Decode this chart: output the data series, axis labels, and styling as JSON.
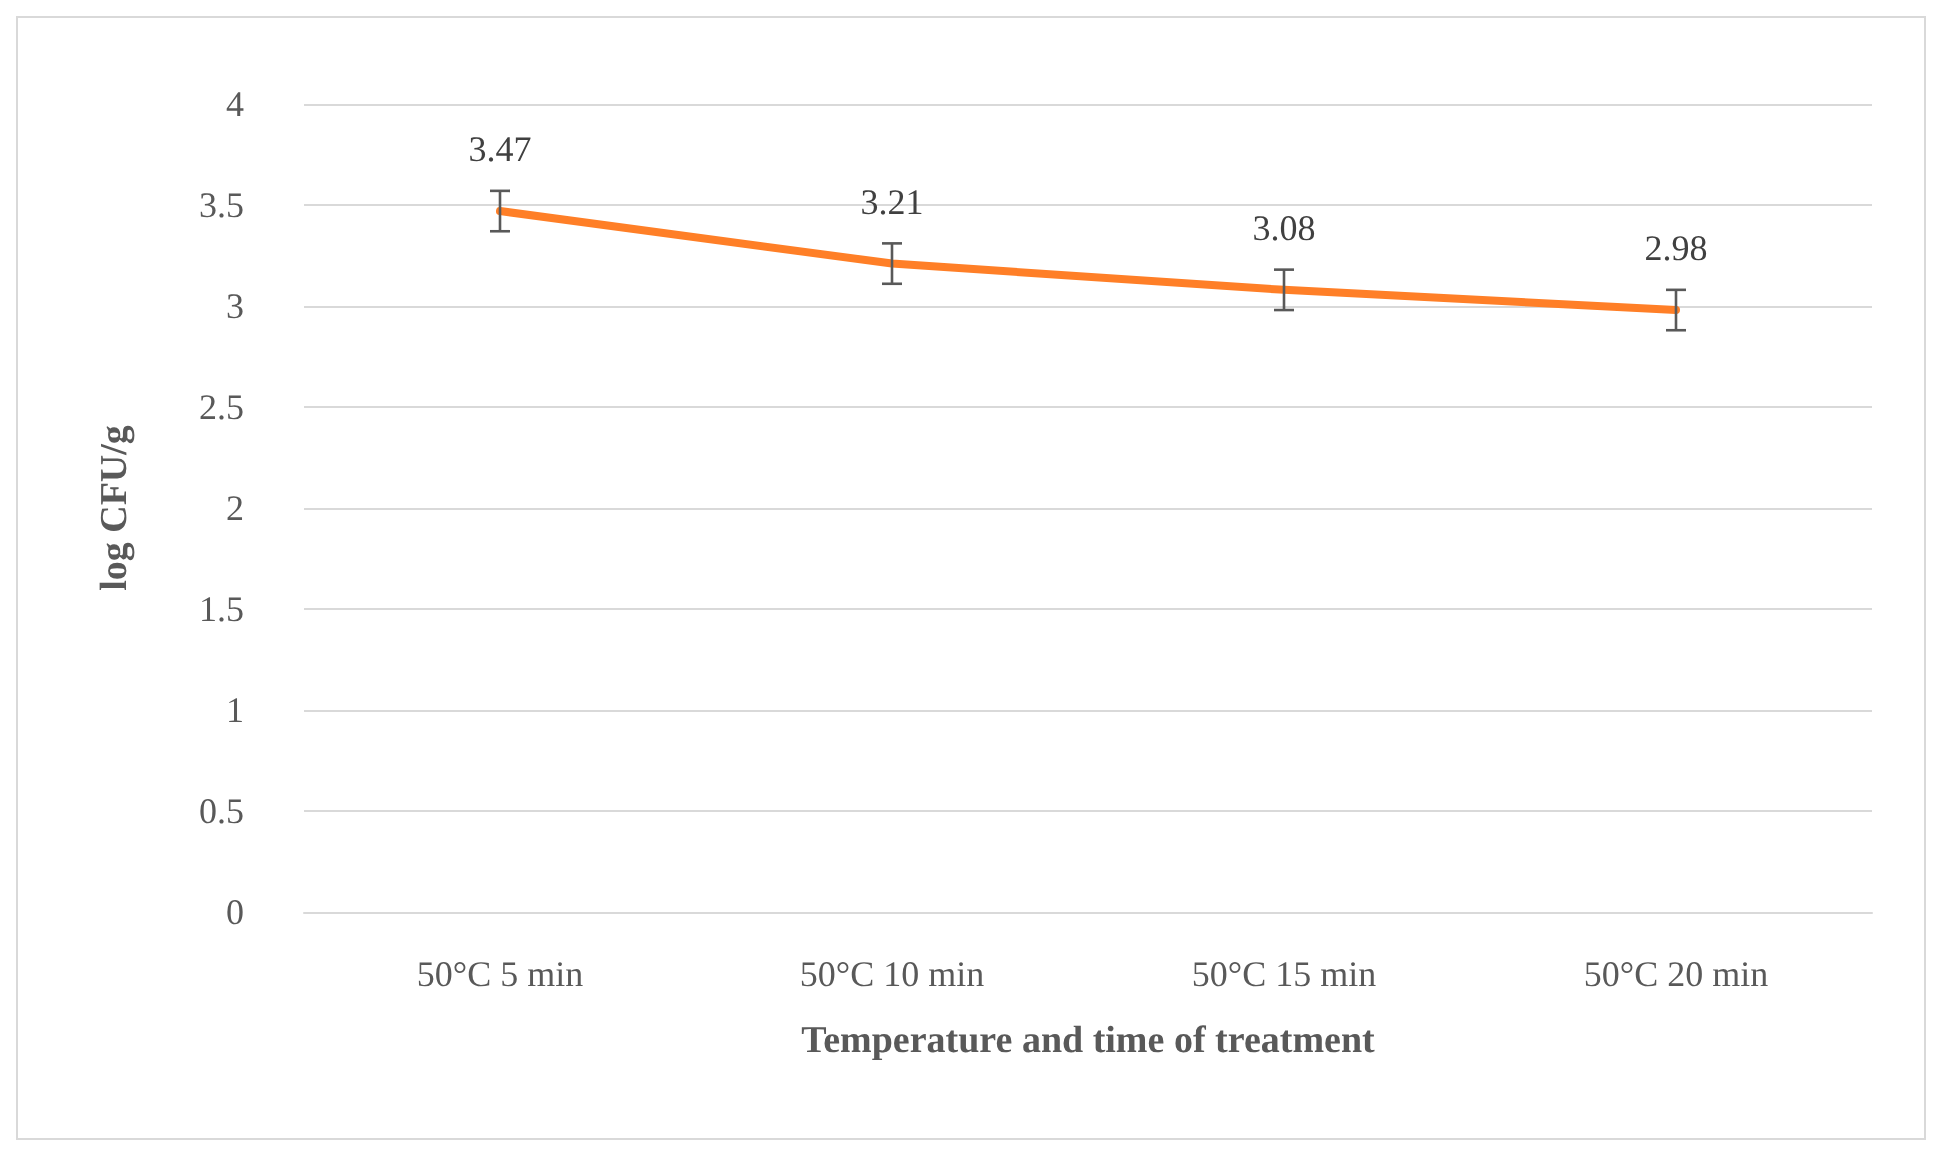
{
  "chart_data": {
    "type": "line",
    "xlabel": "Temperature and time of treatment",
    "ylabel": "log CFU/g",
    "categories": [
      "50°C 5 min",
      "50°C 10 min",
      "50°C 15 min",
      "50°C 20 min"
    ],
    "series": [
      {
        "color": "#ff7f27",
        "values": [
          3.47,
          3.21,
          3.08,
          2.98
        ],
        "errors": [
          0.1,
          0.1,
          0.1,
          0.1
        ]
      }
    ],
    "ylim": [
      0,
      4
    ],
    "yticks": [
      0,
      0.5,
      1,
      1.5,
      2,
      2.5,
      3,
      3.5,
      4
    ],
    "grid": "y",
    "data_labels": true,
    "marker": "none",
    "line_style": "solid"
  }
}
